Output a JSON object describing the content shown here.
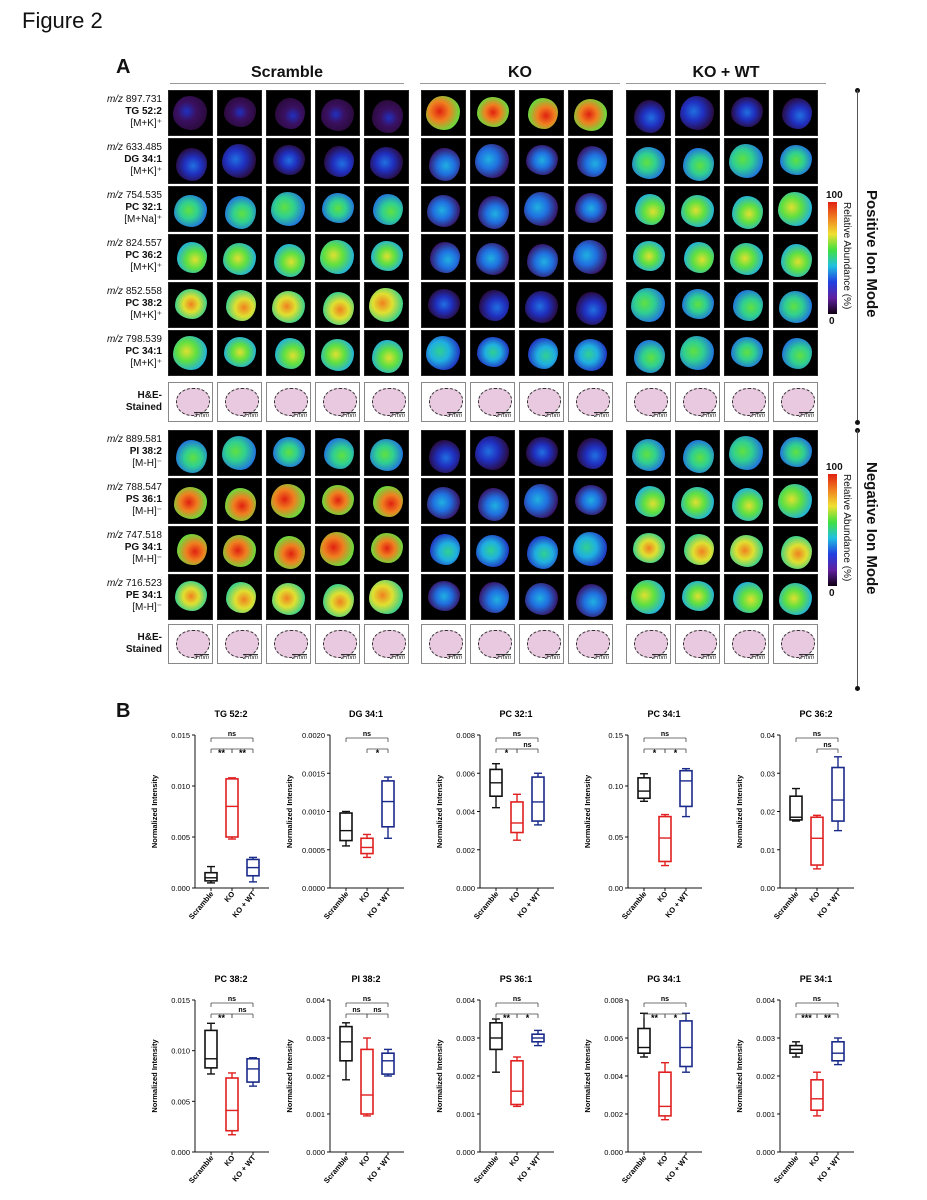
{
  "figure_title": "Figure 2",
  "panel_a": {
    "letter": "A",
    "groups": [
      "Scramble",
      "KO",
      "KO + WT"
    ],
    "positive_mode_label": "Positive Ion Mode",
    "negative_mode_label": "Negative Ion Mode",
    "colorbar": {
      "max": "100",
      "min": "0",
      "label": "Relative Abundance (%)"
    },
    "he_label": [
      "H&E-",
      "Stained"
    ],
    "scale_labels": {
      "a": "3 mm",
      "b": "2 mm"
    },
    "positive_rows": [
      {
        "mz": "897.731",
        "lipid": "TG 52:2",
        "adduct": "[M+K]⁺"
      },
      {
        "mz": "633.485",
        "lipid": "DG 34:1",
        "adduct": "[M+K]⁺"
      },
      {
        "mz": "754.535",
        "lipid": "PC 32:1",
        "adduct": "[M+Na]⁺"
      },
      {
        "mz": "824.557",
        "lipid": "PC 36:2",
        "adduct": "[M+K]⁺"
      },
      {
        "mz": "852.558",
        "lipid": "PC 38:2",
        "adduct": "[M+K]⁺"
      },
      {
        "mz": "798.539",
        "lipid": "PC 34:1",
        "adduct": "[M+K]⁺"
      }
    ],
    "negative_rows": [
      {
        "mz": "889.581",
        "lipid": "PI 38:2",
        "adduct": "[M-H]⁻"
      },
      {
        "mz": "788.547",
        "lipid": "PS 36:1",
        "adduct": "[M-H]⁻"
      },
      {
        "mz": "747.518",
        "lipid": "PG 34:1",
        "adduct": "[M-H]⁻"
      },
      {
        "mz": "716.523",
        "lipid": "PE 34:1",
        "adduct": "[M-H]⁻"
      }
    ]
  },
  "panel_b": {
    "letter": "B",
    "ylabel": "Normalized Intensity",
    "categories": [
      "Scramble",
      "KO",
      "KO + WT"
    ],
    "colors": {
      "Scramble": "#111111",
      "KO": "#e02020",
      "KO + WT": "#1a2a8a"
    }
  },
  "chart_data": [
    {
      "type": "box",
      "title": "TG 52:2",
      "ylim": [
        0,
        0.015
      ],
      "ticks": [
        "0.000",
        "0.005",
        "0.010",
        "0.015"
      ],
      "tickvals": [
        0,
        0.005,
        0.01,
        0.015
      ],
      "boxes": [
        {
          "min": 0.0005,
          "q1": 0.0007,
          "med": 0.001,
          "q3": 0.0015,
          "max": 0.0021
        },
        {
          "min": 0.0048,
          "q1": 0.005,
          "med": 0.008,
          "q3": 0.0107,
          "max": 0.0108
        },
        {
          "min": 0.0006,
          "q1": 0.0012,
          "med": 0.002,
          "q3": 0.0028,
          "max": 0.003
        }
      ],
      "sig": [
        {
          "a": 0,
          "b": 1,
          "label": "**",
          "level": 1
        },
        {
          "a": 1,
          "b": 2,
          "label": "**",
          "level": 1
        },
        {
          "a": 0,
          "b": 2,
          "label": "ns",
          "level": 2
        }
      ]
    },
    {
      "type": "box",
      "title": "DG 34:1",
      "ylim": [
        0,
        0.002
      ],
      "ticks": [
        "0.0000",
        "0.0005",
        "0.0010",
        "0.0015",
        "0.0020"
      ],
      "tickvals": [
        0,
        0.0005,
        0.001,
        0.0015,
        0.002
      ],
      "boxes": [
        {
          "min": 0.00055,
          "q1": 0.00062,
          "med": 0.00075,
          "q3": 0.00098,
          "max": 0.001
        },
        {
          "min": 0.0004,
          "q1": 0.00045,
          "med": 0.00053,
          "q3": 0.00065,
          "max": 0.0007
        },
        {
          "min": 0.00065,
          "q1": 0.0008,
          "med": 0.00113,
          "q3": 0.0014,
          "max": 0.00145
        }
      ],
      "sig": [
        {
          "a": 1,
          "b": 2,
          "label": "*",
          "level": 1
        },
        {
          "a": 0,
          "b": 2,
          "label": "ns",
          "level": 2
        }
      ]
    },
    {
      "type": "box",
      "title": "PC 32:1",
      "ylim": [
        0,
        0.008
      ],
      "ticks": [
        "0.000",
        "0.002",
        "0.004",
        "0.006",
        "0.008"
      ],
      "tickvals": [
        0,
        0.002,
        0.004,
        0.006,
        0.008
      ],
      "boxes": [
        {
          "min": 0.0042,
          "q1": 0.0048,
          "med": 0.0055,
          "q3": 0.0062,
          "max": 0.0065
        },
        {
          "min": 0.0025,
          "q1": 0.0029,
          "med": 0.0034,
          "q3": 0.0045,
          "max": 0.0049
        },
        {
          "min": 0.0033,
          "q1": 0.0035,
          "med": 0.0045,
          "q3": 0.0058,
          "max": 0.006
        }
      ],
      "sig": [
        {
          "a": 0,
          "b": 1,
          "label": "*",
          "level": 1
        },
        {
          "a": 1,
          "b": 2,
          "label": "ns",
          "level": 1
        },
        {
          "a": 0,
          "b": 2,
          "label": "ns",
          "level": 2
        }
      ]
    },
    {
      "type": "box",
      "title": "PC 34:1",
      "ylim": [
        0,
        0.15
      ],
      "ticks": [
        "0.00",
        "0.05",
        "0.10",
        "0.15"
      ],
      "tickvals": [
        0,
        0.05,
        0.1,
        0.15
      ],
      "boxes": [
        {
          "min": 0.085,
          "q1": 0.088,
          "med": 0.095,
          "q3": 0.108,
          "max": 0.112
        },
        {
          "min": 0.022,
          "q1": 0.026,
          "med": 0.049,
          "q3": 0.07,
          "max": 0.072
        },
        {
          "min": 0.07,
          "q1": 0.08,
          "med": 0.105,
          "q3": 0.115,
          "max": 0.117
        }
      ],
      "sig": [
        {
          "a": 0,
          "b": 1,
          "label": "*",
          "level": 1
        },
        {
          "a": 1,
          "b": 2,
          "label": "*",
          "level": 1
        },
        {
          "a": 0,
          "b": 2,
          "label": "ns",
          "level": 2
        }
      ]
    },
    {
      "type": "box",
      "title": "PC 36:2",
      "ylim": [
        0,
        0.04
      ],
      "ticks": [
        "0.00",
        "0.01",
        "0.02",
        "0.03",
        "0.04"
      ],
      "tickvals": [
        0,
        0.01,
        0.02,
        0.03,
        0.04
      ],
      "boxes": [
        {
          "min": 0.0175,
          "q1": 0.0178,
          "med": 0.0185,
          "q3": 0.024,
          "max": 0.026
        },
        {
          "min": 0.005,
          "q1": 0.006,
          "med": 0.013,
          "q3": 0.0185,
          "max": 0.019
        },
        {
          "min": 0.015,
          "q1": 0.0175,
          "med": 0.023,
          "q3": 0.0315,
          "max": 0.0343
        }
      ],
      "sig": [
        {
          "a": 1,
          "b": 2,
          "label": "ns",
          "level": 1
        },
        {
          "a": 0,
          "b": 2,
          "label": "ns",
          "level": 2
        }
      ]
    },
    {
      "type": "box",
      "title": "PC 38:2",
      "ylim": [
        0,
        0.015
      ],
      "ticks": [
        "0.000",
        "0.005",
        "0.010",
        "0.015"
      ],
      "tickvals": [
        0,
        0.005,
        0.01,
        0.015
      ],
      "boxes": [
        {
          "min": 0.0077,
          "q1": 0.0083,
          "med": 0.0092,
          "q3": 0.012,
          "max": 0.0127
        },
        {
          "min": 0.0017,
          "q1": 0.0021,
          "med": 0.0041,
          "q3": 0.0073,
          "max": 0.0078
        },
        {
          "min": 0.0065,
          "q1": 0.0069,
          "med": 0.0082,
          "q3": 0.0092,
          "max": 0.0093
        }
      ],
      "sig": [
        {
          "a": 0,
          "b": 1,
          "label": "**",
          "level": 1
        },
        {
          "a": 1,
          "b": 2,
          "label": "ns",
          "level": 1
        },
        {
          "a": 0,
          "b": 2,
          "label": "ns",
          "level": 2
        }
      ]
    },
    {
      "type": "box",
      "title": "PI 38:2",
      "ylim": [
        0,
        0.004
      ],
      "ticks": [
        "0.000",
        "0.001",
        "0.002",
        "0.003",
        "0.004"
      ],
      "tickvals": [
        0,
        0.001,
        0.002,
        0.003,
        0.004
      ],
      "boxes": [
        {
          "min": 0.0019,
          "q1": 0.0024,
          "med": 0.0029,
          "q3": 0.0033,
          "max": 0.0034
        },
        {
          "min": 0.00095,
          "q1": 0.001,
          "med": 0.0015,
          "q3": 0.0027,
          "max": 0.003
        },
        {
          "min": 0.002,
          "q1": 0.00205,
          "med": 0.0024,
          "q3": 0.0026,
          "max": 0.0027
        }
      ],
      "sig": [
        {
          "a": 0,
          "b": 1,
          "label": "ns",
          "level": 1
        },
        {
          "a": 1,
          "b": 2,
          "label": "ns",
          "level": 1
        },
        {
          "a": 0,
          "b": 2,
          "label": "ns",
          "level": 2
        }
      ]
    },
    {
      "type": "box",
      "title": "PS 36:1",
      "ylim": [
        0,
        0.004
      ],
      "ticks": [
        "0.000",
        "0.001",
        "0.002",
        "0.003",
        "0.004"
      ],
      "tickvals": [
        0,
        0.001,
        0.002,
        0.003,
        0.004
      ],
      "boxes": [
        {
          "min": 0.0021,
          "q1": 0.0027,
          "med": 0.003,
          "q3": 0.0034,
          "max": 0.0035
        },
        {
          "min": 0.0012,
          "q1": 0.00125,
          "med": 0.0016,
          "q3": 0.0024,
          "max": 0.0025
        },
        {
          "min": 0.0028,
          "q1": 0.0029,
          "med": 0.003,
          "q3": 0.0031,
          "max": 0.0032
        }
      ],
      "sig": [
        {
          "a": 0,
          "b": 1,
          "label": "**",
          "level": 1
        },
        {
          "a": 1,
          "b": 2,
          "label": "*",
          "level": 1
        },
        {
          "a": 0,
          "b": 2,
          "label": "ns",
          "level": 2
        }
      ]
    },
    {
      "type": "box",
      "title": "PG 34:1",
      "ylim": [
        0,
        0.008
      ],
      "ticks": [
        "0.000",
        "0.002",
        "0.004",
        "0.006",
        "0.008"
      ],
      "tickvals": [
        0,
        0.002,
        0.004,
        0.006,
        0.008
      ],
      "boxes": [
        {
          "min": 0.005,
          "q1": 0.0052,
          "med": 0.0055,
          "q3": 0.0065,
          "max": 0.0073
        },
        {
          "min": 0.0017,
          "q1": 0.0019,
          "med": 0.0024,
          "q3": 0.0042,
          "max": 0.0047
        },
        {
          "min": 0.0042,
          "q1": 0.0045,
          "med": 0.0055,
          "q3": 0.0069,
          "max": 0.0073
        }
      ],
      "sig": [
        {
          "a": 0,
          "b": 1,
          "label": "**",
          "level": 1
        },
        {
          "a": 1,
          "b": 2,
          "label": "*",
          "level": 1
        },
        {
          "a": 0,
          "b": 2,
          "label": "ns",
          "level": 2
        }
      ]
    },
    {
      "type": "box",
      "title": "PE 34:1",
      "ylim": [
        0,
        0.004
      ],
      "ticks": [
        "0.000",
        "0.001",
        "0.002",
        "0.003",
        "0.004"
      ],
      "tickvals": [
        0,
        0.001,
        0.002,
        0.003,
        0.004
      ],
      "boxes": [
        {
          "min": 0.0025,
          "q1": 0.0026,
          "med": 0.0027,
          "q3": 0.0028,
          "max": 0.0029
        },
        {
          "min": 0.00095,
          "q1": 0.0011,
          "med": 0.0014,
          "q3": 0.0019,
          "max": 0.0021
        },
        {
          "min": 0.0023,
          "q1": 0.0024,
          "med": 0.0026,
          "q3": 0.0029,
          "max": 0.003
        }
      ],
      "sig": [
        {
          "a": 0,
          "b": 1,
          "label": "***",
          "level": 1
        },
        {
          "a": 1,
          "b": 2,
          "label": "**",
          "level": 1
        },
        {
          "a": 0,
          "b": 2,
          "label": "ns",
          "level": 2
        }
      ]
    }
  ]
}
